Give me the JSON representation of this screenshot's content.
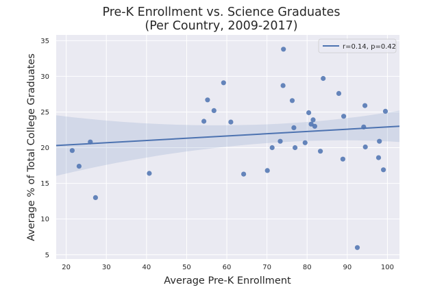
{
  "chart_data": {
    "type": "scatter",
    "title_line1": "Pre-K Enrollment vs. Science Graduates",
    "title_line2": "(Per Country, 2009-2017)",
    "xlabel": "Average Pre-K Enrollment",
    "ylabel": "Average % of Total College Graduates",
    "xlim": [
      17.5,
      103
    ],
    "ylim": [
      4.4,
      35.8
    ],
    "xticks": [
      20,
      30,
      40,
      50,
      60,
      70,
      80,
      90,
      100
    ],
    "yticks": [
      5,
      10,
      15,
      20,
      25,
      30,
      35
    ],
    "grid": true,
    "legend_position": "top-right",
    "regression": {
      "label": "r=0.14, p=0.42",
      "x": [
        17.5,
        103
      ],
      "y": [
        20.3,
        23.0
      ],
      "ci_lower": [
        17.0,
        21.4
      ],
      "ci_upper": [
        25.5,
        25.8
      ]
    },
    "points": [
      {
        "x": 21.5,
        "y": 19.6
      },
      {
        "x": 23.2,
        "y": 17.4
      },
      {
        "x": 26.0,
        "y": 20.8
      },
      {
        "x": 27.3,
        "y": 13.0
      },
      {
        "x": 40.7,
        "y": 16.4
      },
      {
        "x": 54.3,
        "y": 23.7
      },
      {
        "x": 55.2,
        "y": 26.7
      },
      {
        "x": 56.8,
        "y": 25.2
      },
      {
        "x": 59.2,
        "y": 29.1
      },
      {
        "x": 61.0,
        "y": 23.6
      },
      {
        "x": 64.2,
        "y": 16.3
      },
      {
        "x": 70.1,
        "y": 16.8
      },
      {
        "x": 71.3,
        "y": 20.0
      },
      {
        "x": 73.3,
        "y": 20.9
      },
      {
        "x": 74.1,
        "y": 33.8
      },
      {
        "x": 74.0,
        "y": 28.7
      },
      {
        "x": 76.3,
        "y": 26.6
      },
      {
        "x": 76.7,
        "y": 22.8
      },
      {
        "x": 77.0,
        "y": 20.0
      },
      {
        "x": 79.5,
        "y": 20.7
      },
      {
        "x": 80.4,
        "y": 24.9
      },
      {
        "x": 81.0,
        "y": 23.3
      },
      {
        "x": 81.5,
        "y": 23.9
      },
      {
        "x": 81.9,
        "y": 23.0
      },
      {
        "x": 83.3,
        "y": 19.5
      },
      {
        "x": 84.0,
        "y": 29.7
      },
      {
        "x": 87.9,
        "y": 27.6
      },
      {
        "x": 88.9,
        "y": 18.4
      },
      {
        "x": 89.1,
        "y": 24.4
      },
      {
        "x": 92.5,
        "y": 6.0
      },
      {
        "x": 94.1,
        "y": 22.9
      },
      {
        "x": 94.4,
        "y": 25.9
      },
      {
        "x": 94.5,
        "y": 20.1
      },
      {
        "x": 97.8,
        "y": 18.6
      },
      {
        "x": 98.0,
        "y": 20.9
      },
      {
        "x": 99.0,
        "y": 16.9
      },
      {
        "x": 99.5,
        "y": 25.1
      }
    ]
  },
  "colors": {
    "plot_bg": "#eaeaf2",
    "grid": "#ffffff",
    "point": "#4c72b0",
    "line": "#4c72b0",
    "ci_band": "#4c72b0",
    "text": "#262626"
  }
}
